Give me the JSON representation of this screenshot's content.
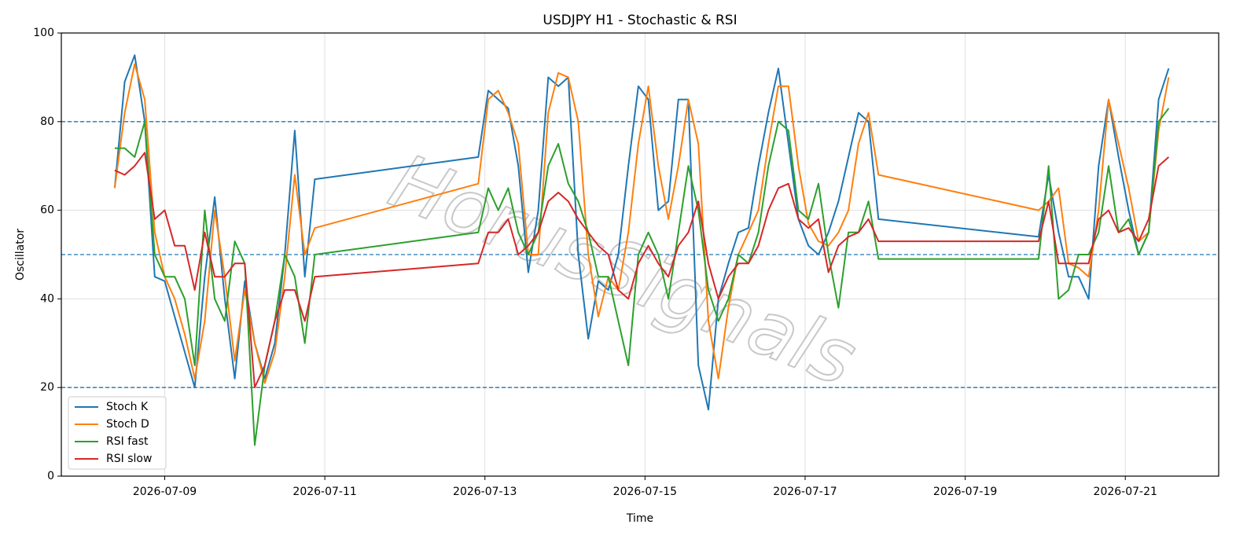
{
  "chart_data": {
    "type": "line",
    "title": "USDJPY H1 - Stochastic & RSI",
    "x_label": "Time",
    "y_label": "Oscillator",
    "watermark": "HorusSignals",
    "x": [
      "2026-07-08 09:00",
      "2026-07-08 12:00",
      "2026-07-08 15:00",
      "2026-07-08 18:00",
      "2026-07-08 21:00",
      "2026-07-09 00:00",
      "2026-07-09 03:00",
      "2026-07-09 06:00",
      "2026-07-09 09:00",
      "2026-07-09 12:00",
      "2026-07-09 15:00",
      "2026-07-09 18:00",
      "2026-07-09 21:00",
      "2026-07-10 00:00",
      "2026-07-10 03:00",
      "2026-07-10 06:00",
      "2026-07-10 09:00",
      "2026-07-10 12:00",
      "2026-07-10 15:00",
      "2026-07-10 18:00",
      "2026-07-10 21:00",
      "2026-07-12 22:00",
      "2026-07-13 01:00",
      "2026-07-13 04:00",
      "2026-07-13 07:00",
      "2026-07-13 10:00",
      "2026-07-13 13:00",
      "2026-07-13 16:00",
      "2026-07-13 19:00",
      "2026-07-13 22:00",
      "2026-07-14 01:00",
      "2026-07-14 04:00",
      "2026-07-14 07:00",
      "2026-07-14 10:00",
      "2026-07-14 13:00",
      "2026-07-14 16:00",
      "2026-07-14 19:00",
      "2026-07-14 22:00",
      "2026-07-15 01:00",
      "2026-07-15 04:00",
      "2026-07-15 07:00",
      "2026-07-15 10:00",
      "2026-07-15 13:00",
      "2026-07-15 16:00",
      "2026-07-15 19:00",
      "2026-07-15 22:00",
      "2026-07-16 01:00",
      "2026-07-16 04:00",
      "2026-07-16 07:00",
      "2026-07-16 10:00",
      "2026-07-16 13:00",
      "2026-07-16 16:00",
      "2026-07-16 19:00",
      "2026-07-16 22:00",
      "2026-07-17 01:00",
      "2026-07-17 04:00",
      "2026-07-17 07:00",
      "2026-07-17 10:00",
      "2026-07-17 13:00",
      "2026-07-17 16:00",
      "2026-07-17 19:00",
      "2026-07-17 22:00",
      "2026-07-19 22:00",
      "2026-07-20 01:00",
      "2026-07-20 04:00",
      "2026-07-20 07:00",
      "2026-07-20 10:00",
      "2026-07-20 13:00",
      "2026-07-20 16:00",
      "2026-07-20 19:00",
      "2026-07-20 22:00",
      "2026-07-21 01:00",
      "2026-07-21 04:00",
      "2026-07-21 07:00",
      "2026-07-21 10:00",
      "2026-07-21 13:00"
    ],
    "series": [
      {
        "name": "Stoch K",
        "color": "#1f77b4",
        "values": [
          65,
          89,
          95,
          80,
          45,
          44,
          36,
          28,
          20,
          45,
          63,
          40,
          22,
          44,
          30,
          22,
          30,
          50,
          78,
          45,
          67,
          72,
          87,
          85,
          83,
          70,
          46,
          60,
          90,
          88,
          90,
          50,
          31,
          44,
          42,
          50,
          70,
          88,
          85,
          60,
          62,
          85,
          85,
          25,
          15,
          40,
          48,
          55,
          56,
          70,
          82,
          92,
          75,
          58,
          52,
          50,
          55,
          62,
          72,
          82,
          80,
          58,
          54,
          68,
          55,
          45,
          45,
          40,
          70,
          85,
          72,
          60,
          50,
          55,
          85,
          92
        ]
      },
      {
        "name": "Stoch D",
        "color": "#ff7f0e",
        "values": [
          65,
          82,
          93,
          85,
          55,
          45,
          40,
          32,
          22,
          35,
          60,
          45,
          26,
          42,
          30,
          21,
          28,
          45,
          68,
          50,
          56,
          66,
          85,
          87,
          82,
          75,
          50,
          50,
          82,
          91,
          90,
          80,
          50,
          36,
          45,
          42,
          55,
          75,
          88,
          70,
          58,
          70,
          85,
          75,
          35,
          22,
          38,
          50,
          55,
          60,
          75,
          88,
          88,
          70,
          57,
          53,
          52,
          55,
          60,
          75,
          82,
          68,
          60,
          62,
          65,
          48,
          47,
          45,
          60,
          85,
          75,
          65,
          53,
          55,
          78,
          90
        ]
      },
      {
        "name": "RSI fast",
        "color": "#2ca02c",
        "values": [
          74,
          74,
          72,
          80,
          50,
          45,
          45,
          40,
          25,
          60,
          40,
          35,
          53,
          48,
          7,
          25,
          35,
          50,
          45,
          30,
          50,
          55,
          65,
          60,
          65,
          55,
          50,
          55,
          70,
          75,
          66,
          62,
          55,
          45,
          45,
          35,
          25,
          50,
          55,
          50,
          40,
          55,
          70,
          60,
          42,
          35,
          40,
          50,
          48,
          55,
          70,
          80,
          78,
          60,
          58,
          66,
          50,
          38,
          55,
          55,
          62,
          49,
          49,
          70,
          40,
          42,
          50,
          50,
          55,
          70,
          55,
          58,
          50,
          55,
          80,
          83
        ]
      },
      {
        "name": "RSI slow",
        "color": "#d62728",
        "values": [
          69,
          68,
          70,
          73,
          58,
          60,
          52,
          52,
          42,
          55,
          45,
          45,
          48,
          48,
          20,
          25,
          35,
          42,
          42,
          35,
          45,
          48,
          55,
          55,
          58,
          50,
          52,
          55,
          62,
          64,
          62,
          58,
          55,
          52,
          50,
          42,
          40,
          48,
          52,
          48,
          45,
          52,
          55,
          62,
          48,
          40,
          45,
          48,
          48,
          52,
          60,
          65,
          66,
          58,
          56,
          58,
          46,
          52,
          54,
          55,
          58,
          53,
          53,
          62,
          48,
          48,
          48,
          48,
          58,
          60,
          55,
          56,
          53,
          58,
          70,
          72
        ]
      }
    ],
    "xlim": [
      "2026-07-07 17:00",
      "2026-07-22 04:00"
    ],
    "xticks": [
      "2026-07-09",
      "2026-07-11",
      "2026-07-13",
      "2026-07-15",
      "2026-07-17",
      "2026-07-19",
      "2026-07-21"
    ],
    "ylim": [
      0,
      100
    ],
    "yticks": [
      0,
      20,
      40,
      60,
      80,
      100
    ],
    "hlines": [
      20,
      50,
      80
    ],
    "hline_color": "#1f77b4",
    "grid": true,
    "legend": "lower left"
  }
}
